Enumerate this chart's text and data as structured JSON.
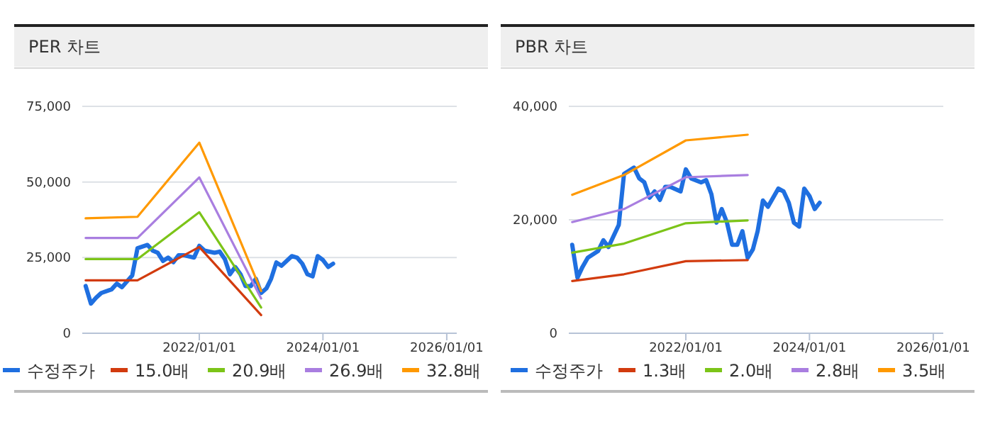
{
  "chart_data": [
    {
      "type": "line",
      "title": "PER 차트",
      "x": [
        "2020-03",
        "2020-04",
        "2020-05",
        "2020-06",
        "2020-08",
        "2020-09",
        "2020-10",
        "2020-11",
        "2020-12",
        "2021-01",
        "2021-03",
        "2021-04",
        "2021-05",
        "2021-06",
        "2021-07",
        "2021-08",
        "2021-09",
        "2021-10",
        "2021-12",
        "2022-01",
        "2022-02",
        "2022-04",
        "2022-05",
        "2022-06",
        "2022-07",
        "2022-08",
        "2022-09",
        "2022-10",
        "2022-11",
        "2022-12",
        "2023-01",
        "2023-02",
        "2023-03",
        "2023-04",
        "2023-05",
        "2023-07",
        "2023-08",
        "2023-09",
        "2023-10",
        "2023-11",
        "2023-12",
        "2024-01",
        "2024-02",
        "2024-03"
      ],
      "series": [
        {
          "name": "수정주가",
          "color": "#1f6fe0",
          "values": [
            15600,
            9800,
            11700,
            13300,
            14500,
            16400,
            15200,
            17200,
            19100,
            28100,
            29200,
            27300,
            26600,
            23900,
            25000,
            23500,
            25800,
            25800,
            25000,
            28900,
            27300,
            26600,
            27000,
            24500,
            19500,
            21900,
            19500,
            15600,
            15600,
            18000,
            13300,
            14800,
            18000,
            23400,
            22300,
            25500,
            25000,
            23000,
            19500,
            18800,
            25500,
            24200,
            21900,
            23000
          ]
        },
        {
          "name": "15.0배",
          "color": "#d23b0e",
          "x": [
            "2020-03",
            "2021-01",
            "2022-01",
            "2023-01"
          ],
          "values": [
            17500,
            17500,
            28500,
            6000
          ]
        },
        {
          "name": "20.9배",
          "color": "#7cc418",
          "x": [
            "2020-03",
            "2021-01",
            "2022-01",
            "2023-01"
          ],
          "values": [
            24500,
            24500,
            40000,
            8500
          ]
        },
        {
          "name": "26.9배",
          "color": "#a97ee0",
          "x": [
            "2020-03",
            "2021-01",
            "2022-01",
            "2023-01"
          ],
          "values": [
            31500,
            31500,
            51500,
            11500
          ]
        },
        {
          "name": "32.8배",
          "color": "#ff9900",
          "x": [
            "2020-03",
            "2021-01",
            "2022-01",
            "2023-01"
          ],
          "values": [
            38000,
            38500,
            63000,
            14000
          ]
        }
      ],
      "xlim": [
        "2020-02-10",
        "2026-03-01"
      ],
      "xticks": [
        {
          "value": "2022-01-01",
          "label": "2022/01/01"
        },
        {
          "value": "2024-01-01",
          "label": "2024/01/01"
        },
        {
          "value": "2026-01-01",
          "label": "2026/01/01"
        }
      ],
      "ylim": [
        0,
        75000
      ],
      "yticks": [
        0,
        {
          "value": 25000,
          "label": "25,000"
        },
        {
          "value": 50000,
          "label": "50,000"
        },
        {
          "value": 75000,
          "label": "75,000"
        }
      ],
      "grid": "y",
      "legend": "bottom",
      "marker": "none",
      "line_style": "solid"
    },
    {
      "type": "line",
      "title": "PBR 차트",
      "x": [
        "2020-03",
        "2020-04",
        "2020-05",
        "2020-06",
        "2020-08",
        "2020-09",
        "2020-10",
        "2020-11",
        "2020-12",
        "2021-01",
        "2021-03",
        "2021-04",
        "2021-05",
        "2021-06",
        "2021-07",
        "2021-08",
        "2021-09",
        "2021-10",
        "2021-12",
        "2022-01",
        "2022-02",
        "2022-04",
        "2022-05",
        "2022-06",
        "2022-07",
        "2022-08",
        "2022-09",
        "2022-10",
        "2022-11",
        "2022-12",
        "2023-01",
        "2023-02",
        "2023-03",
        "2023-04",
        "2023-05",
        "2023-07",
        "2023-08",
        "2023-09",
        "2023-10",
        "2023-11",
        "2023-12",
        "2024-01",
        "2024-02",
        "2024-03"
      ],
      "series": [
        {
          "name": "수정주가",
          "color": "#1f6fe0",
          "values": [
            15600,
            9800,
            11700,
            13300,
            14500,
            16400,
            15200,
            17200,
            19100,
            28100,
            29200,
            27300,
            26600,
            23900,
            25000,
            23500,
            25800,
            25800,
            25000,
            28900,
            27300,
            26600,
            27000,
            24500,
            19500,
            21900,
            19500,
            15600,
            15600,
            18000,
            13300,
            14800,
            18000,
            23400,
            22300,
            25500,
            25000,
            23000,
            19500,
            18800,
            25500,
            24200,
            21900,
            23000
          ]
        },
        {
          "name": "1.3배",
          "color": "#d23b0e",
          "x": [
            "2020-03",
            "2021-01",
            "2022-01",
            "2023-01"
          ],
          "values": [
            9200,
            10400,
            12700,
            12900
          ]
        },
        {
          "name": "2.0배",
          "color": "#7cc418",
          "x": [
            "2020-03",
            "2021-01",
            "2022-01",
            "2023-01"
          ],
          "values": [
            14200,
            15800,
            19400,
            19900
          ]
        },
        {
          "name": "2.8배",
          "color": "#a97ee0",
          "x": [
            "2020-03",
            "2021-01",
            "2022-01",
            "2023-01"
          ],
          "values": [
            19600,
            21900,
            27500,
            27900
          ]
        },
        {
          "name": "3.5배",
          "color": "#ff9900",
          "x": [
            "2020-03",
            "2021-01",
            "2022-01",
            "2023-01"
          ],
          "values": [
            24400,
            27900,
            34000,
            35000
          ]
        }
      ],
      "xlim": [
        "2020-02-10",
        "2026-03-01"
      ],
      "xticks": [
        {
          "value": "2022-01-01",
          "label": "2022/01/01"
        },
        {
          "value": "2024-01-01",
          "label": "2024/01/01"
        },
        {
          "value": "2026-01-01",
          "label": "2026/01/01"
        }
      ],
      "ylim": [
        0,
        40000
      ],
      "yticks": [
        0,
        {
          "value": 20000,
          "label": "20,000"
        },
        {
          "value": 40000,
          "label": "40,000"
        }
      ],
      "grid": "y",
      "legend": "bottom",
      "marker": "none",
      "line_style": "solid"
    }
  ]
}
